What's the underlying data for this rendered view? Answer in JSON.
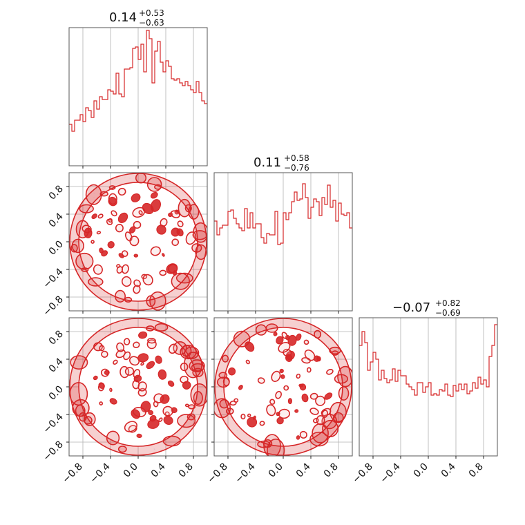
{
  "chart_data": {
    "type": "corner",
    "color": "#d62728",
    "ticks": [
      -0.8,
      -0.4,
      0.0,
      0.4,
      0.8
    ],
    "tick_labels": [
      "−0.8",
      "−0.4",
      "0.0",
      "0.4",
      "0.8"
    ],
    "range": [
      -1.0,
      1.0
    ],
    "grid": true,
    "panels": {
      "titles": [
        {
          "main": "0.14",
          "plus": "+0.53",
          "minus": "−0.63"
        },
        {
          "main": "0.11",
          "plus": "+0.58",
          "minus": "−0.76"
        },
        {
          "main": "−0.07",
          "plus": "+0.82",
          "minus": "−0.69"
        }
      ],
      "histograms": [
        {
          "name": "hist-0",
          "x_range": [
            -1.0,
            1.0
          ],
          "values": [
            0.3,
            0.25,
            0.33,
            0.33,
            0.37,
            0.32,
            0.42,
            0.4,
            0.35,
            0.47,
            0.41,
            0.5,
            0.48,
            0.48,
            0.55,
            0.54,
            0.52,
            0.67,
            0.52,
            0.5,
            0.7,
            0.7,
            0.71,
            0.85,
            0.86,
            0.77,
            0.88,
            0.68,
            0.98,
            0.92,
            0.6,
            0.83,
            0.9,
            0.75,
            0.68,
            0.76,
            0.72,
            0.63,
            0.62,
            0.63,
            0.6,
            0.58,
            0.61,
            0.58,
            0.55,
            0.53,
            0.61,
            0.53,
            0.47,
            0.45
          ]
        },
        {
          "name": "hist-1",
          "x_range": [
            -1.0,
            1.0
          ],
          "values": [
            0.65,
            0.55,
            0.6,
            0.62,
            0.62,
            0.72,
            0.73,
            0.67,
            0.63,
            0.6,
            0.58,
            0.74,
            0.6,
            0.71,
            0.6,
            0.63,
            0.63,
            0.53,
            0.49,
            0.56,
            0.55,
            0.55,
            0.72,
            0.48,
            0.49,
            0.71,
            0.66,
            0.71,
            0.79,
            0.86,
            0.8,
            0.81,
            0.92,
            0.82,
            0.67,
            0.75,
            0.81,
            0.79,
            0.69,
            0.82,
            0.77,
            0.91,
            0.75,
            0.8,
            0.65,
            0.78,
            0.7,
            0.69,
            0.71,
            0.6
          ]
        },
        {
          "name": "hist-2",
          "x_range": [
            -1.0,
            1.0
          ],
          "values": [
            0.8,
            0.9,
            0.82,
            0.62,
            0.68,
            0.75,
            0.7,
            0.55,
            0.62,
            0.56,
            0.53,
            0.55,
            0.63,
            0.54,
            0.62,
            0.58,
            0.58,
            0.52,
            0.5,
            0.48,
            0.44,
            0.53,
            0.53,
            0.46,
            0.5,
            0.53,
            0.44,
            0.45,
            0.44,
            0.48,
            0.47,
            0.52,
            0.44,
            0.43,
            0.51,
            0.47,
            0.52,
            0.48,
            0.52,
            0.45,
            0.47,
            0.53,
            0.49,
            0.57,
            0.52,
            0.55,
            0.5,
            0.72,
            0.8,
            0.95
          ]
        }
      ],
      "scatter_pairs": [
        {
          "name": "pair-1-0",
          "x_param": 0,
          "y_param": 1
        },
        {
          "name": "pair-2-0",
          "x_param": 0,
          "y_param": 2
        },
        {
          "name": "pair-2-1",
          "x_param": 1,
          "y_param": 2
        }
      ]
    }
  }
}
